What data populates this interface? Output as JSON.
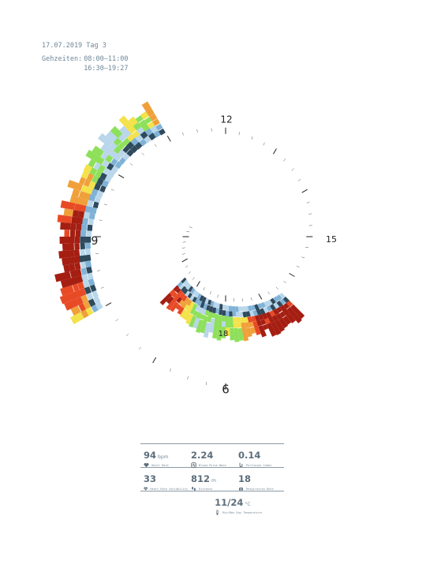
{
  "header": {
    "date_line": "17.07.2019 Tag 3",
    "times_label": "Gehzeiten:",
    "times": [
      "08:00–11:00",
      "16:30–19:27"
    ]
  },
  "stats": [
    {
      "value": "94",
      "unit": "bpm",
      "label": "Heart Rate",
      "icon": "heart-icon"
    },
    {
      "value": "2.24",
      "unit": "",
      "label": "Blood Pulse Wave",
      "icon": "pulse-wave-icon"
    },
    {
      "value": "0.14",
      "unit": "",
      "label": "Perfusion Index",
      "icon": "perfusion-icon"
    },
    {
      "value": "33",
      "unit": "",
      "label": "Heart Rate Variability",
      "icon": "hrv-icon"
    },
    {
      "value": "812",
      "unit": "m",
      "label": "Distance",
      "icon": "footsteps-icon"
    },
    {
      "value": "18",
      "unit": "",
      "label": "Respiration Rate",
      "icon": "lungs-icon"
    },
    {
      "value": "11/24",
      "unit": "°C",
      "label": "Min/Max Day Temperature",
      "icon": "thermometer-icon"
    }
  ],
  "chart_data": {
    "type": "radial-heatmap",
    "hour_labels": [
      "12",
      "15",
      "18",
      "6",
      "9"
    ],
    "walking_segments": [
      {
        "start": "08:00",
        "end": "11:00"
      },
      {
        "start": "16:30",
        "end": "19:27"
      }
    ],
    "colors": {
      "blue_dark": "#2e4a5c",
      "blue": "#7fb2d6",
      "blue_light": "#b9d6ea",
      "green": "#8ee05a",
      "yellow": "#f3e24a",
      "orange": "#f0a03a",
      "red": "#e84a26",
      "red_dark": "#a51e12"
    }
  }
}
